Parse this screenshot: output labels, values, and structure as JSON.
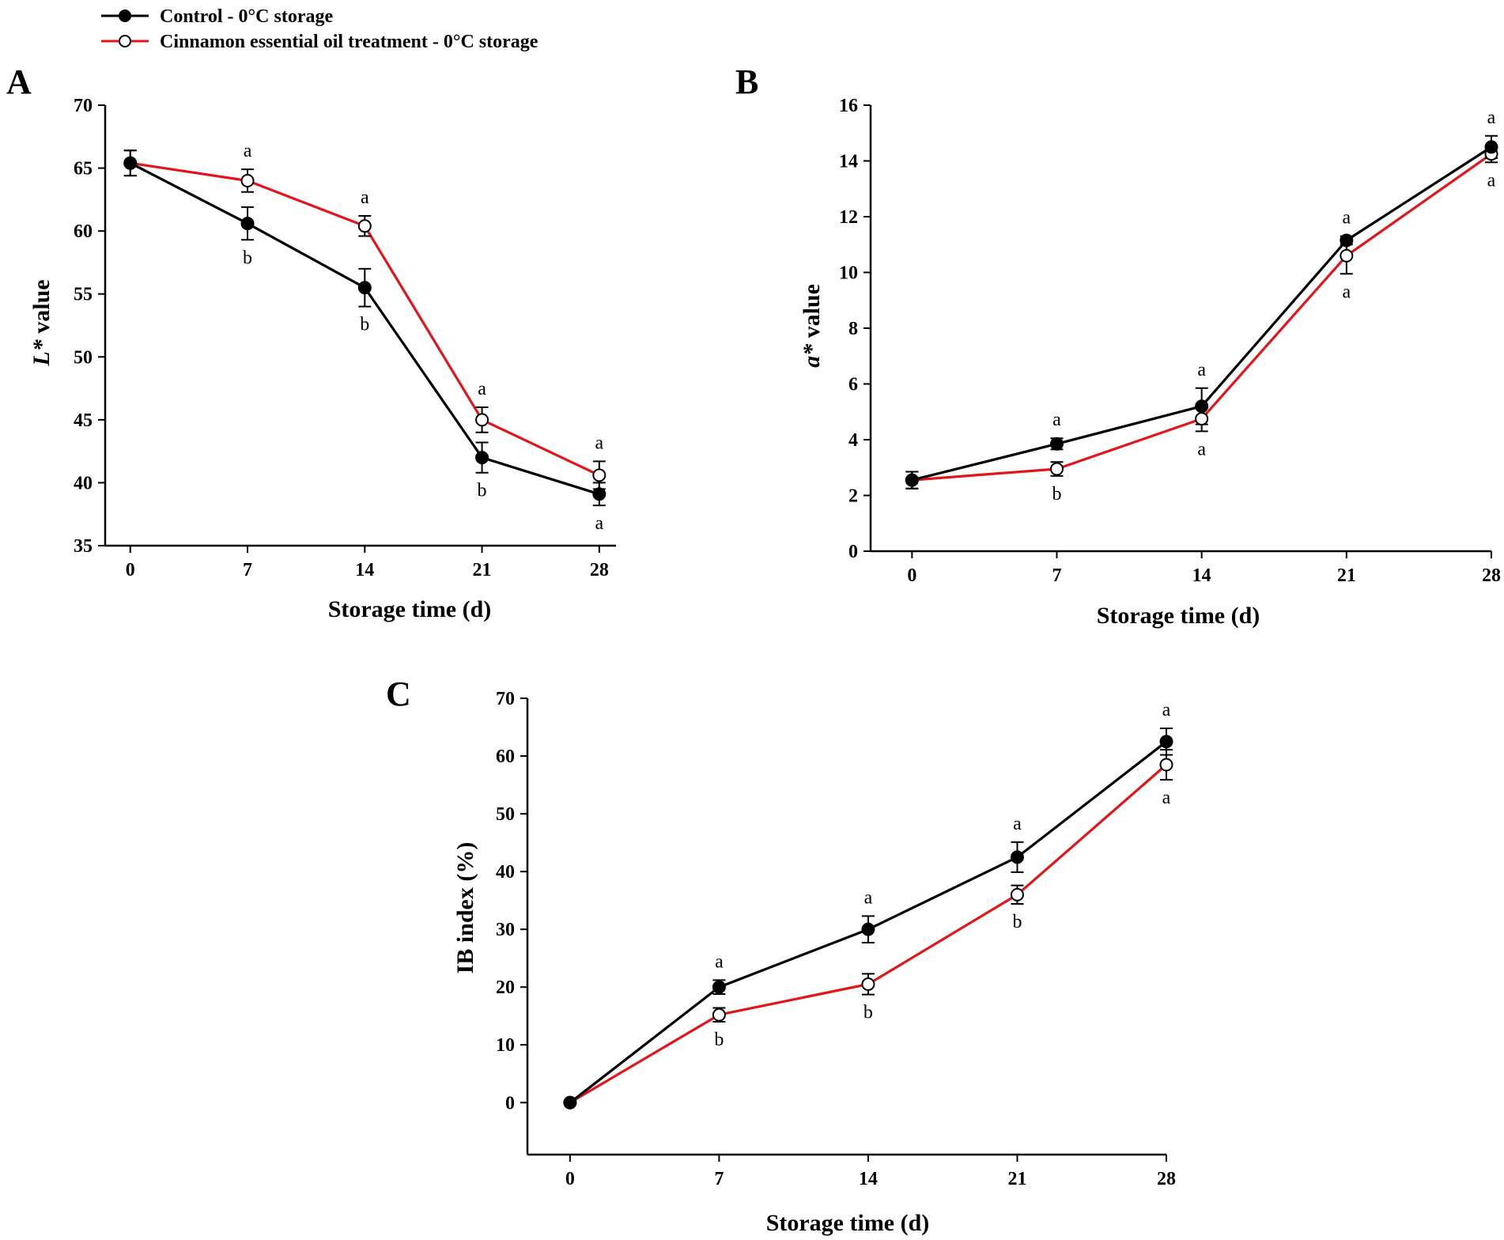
{
  "legend": [
    {
      "label": "Control - 0°C storage",
      "color": "#000000",
      "marker": "filled"
    },
    {
      "label": "Cinnamon essential oil treatment - 0°C storage",
      "color": "#e3151a",
      "marker": "open"
    }
  ],
  "chart_data": [
    {
      "panel": "A",
      "type": "line",
      "ylabel_italic": "L*",
      "ylabel_rest": " value",
      "xlabel": "Storage time (d)",
      "x": [
        0,
        7,
        14,
        21,
        28
      ],
      "xlim": [
        -1.5,
        29
      ],
      "ylim": [
        35,
        70
      ],
      "yticks": [
        35,
        40,
        45,
        50,
        55,
        60,
        65,
        70
      ],
      "series": [
        {
          "name": "Control - 0°C storage",
          "values": [
            65.4,
            60.6,
            55.5,
            42.0,
            39.1
          ],
          "errors": [
            1.0,
            1.3,
            1.5,
            1.2,
            0.9
          ],
          "letters": [
            "",
            "b",
            "b",
            "b",
            "a"
          ]
        },
        {
          "name": "Cinnamon essential oil treatment - 0°C storage",
          "values": [
            65.4,
            64.0,
            60.4,
            45.0,
            40.6
          ],
          "errors": [
            1.0,
            0.9,
            0.8,
            1.0,
            1.1
          ],
          "letters": [
            "",
            "a",
            "a",
            "a",
            "a"
          ]
        }
      ]
    },
    {
      "panel": "B",
      "type": "line",
      "ylabel_italic": "a*",
      "ylabel_rest": " value",
      "xlabel": "Storage time (d)",
      "x": [
        0,
        7,
        14,
        21,
        28
      ],
      "xlim": [
        -2,
        28
      ],
      "ylim": [
        0,
        16
      ],
      "yticks": [
        0,
        2,
        4,
        6,
        8,
        10,
        12,
        14,
        16
      ],
      "series": [
        {
          "name": "Control - 0°C storage",
          "values": [
            2.55,
            3.85,
            5.2,
            11.15,
            14.5
          ],
          "errors": [
            0.3,
            0.2,
            0.65,
            0.15,
            0.4
          ],
          "letters": [
            "",
            "a",
            "a",
            "a",
            "a"
          ]
        },
        {
          "name": "Cinnamon essential oil treatment - 0°C storage",
          "values": [
            2.55,
            2.95,
            4.75,
            10.6,
            14.25
          ],
          "errors": [
            0.3,
            0.25,
            0.45,
            0.65,
            0.3
          ],
          "letters": [
            "",
            "b",
            "a",
            "a",
            "a"
          ]
        }
      ]
    },
    {
      "panel": "C",
      "type": "line",
      "ylabel_italic": "",
      "ylabel_rest": "IB index (%)",
      "xlabel": "Storage time (d)",
      "x": [
        0,
        7,
        14,
        21,
        28
      ],
      "xlim": [
        -2,
        28
      ],
      "ylim": [
        -9,
        70
      ],
      "yticks": [
        0,
        10,
        20,
        30,
        40,
        50,
        60,
        70
      ],
      "series": [
        {
          "name": "Control - 0°C storage",
          "values": [
            0,
            20,
            30,
            42.5,
            62.5
          ],
          "errors": [
            0,
            1.2,
            2.3,
            2.6,
            2.3
          ],
          "letters": [
            "",
            "a",
            "a",
            "a",
            "a"
          ]
        },
        {
          "name": "Cinnamon essential oil treatment - 0°C storage",
          "values": [
            0,
            15.2,
            20.5,
            36.0,
            58.5
          ],
          "errors": [
            0,
            1.2,
            1.8,
            1.6,
            2.6
          ],
          "letters": [
            "",
            "b",
            "b",
            "b",
            "a"
          ]
        }
      ]
    }
  ]
}
